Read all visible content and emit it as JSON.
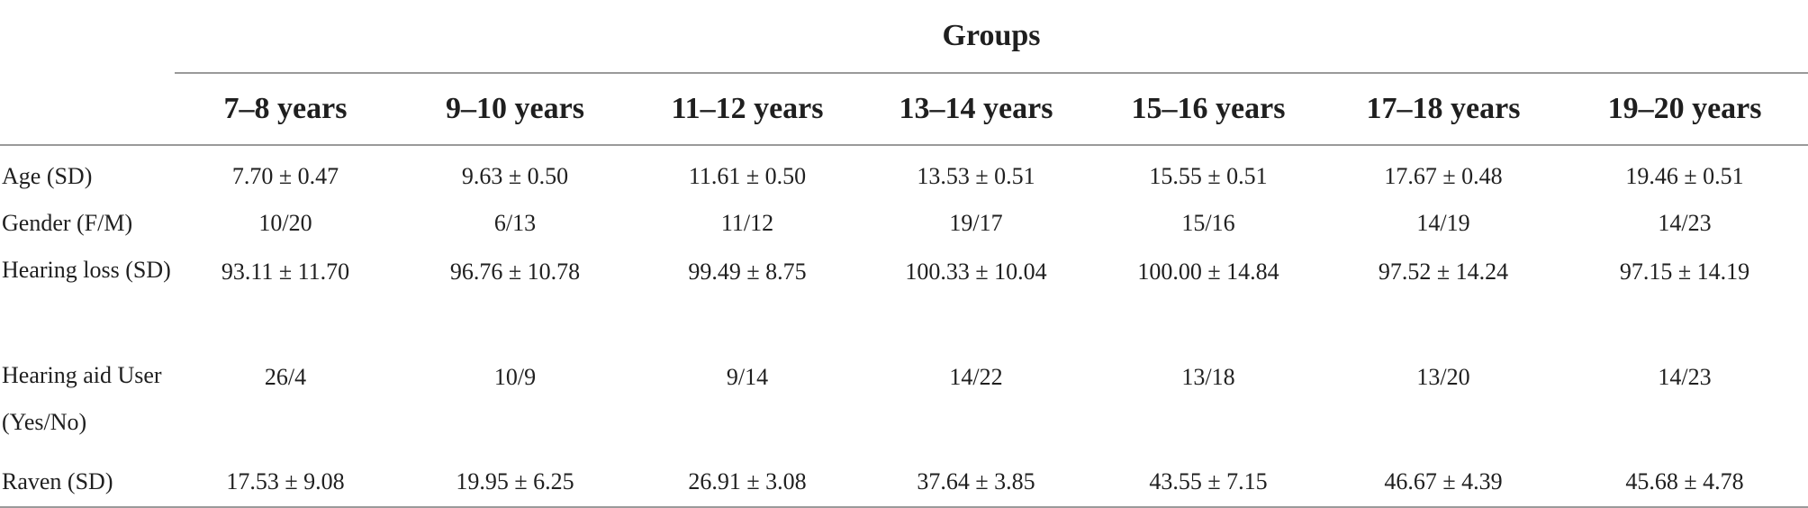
{
  "table": {
    "group_title": "Groups",
    "columns": [
      "7–8 years",
      "9–10 years",
      "11–12 years",
      "13–14 years",
      "15–16 years",
      "17–18 years",
      "19–20 years"
    ],
    "rows": [
      {
        "label": "Age (SD)",
        "values": [
          "7.70 ± 0.47",
          "9.63 ± 0.50",
          "11.61 ± 0.50",
          "13.53 ± 0.51",
          "15.55 ± 0.51",
          "17.67 ± 0.48",
          "19.46 ± 0.51"
        ]
      },
      {
        "label": "Gender (F/M)",
        "values": [
          "10/20",
          "6/13",
          "11/12",
          "19/17",
          "15/16",
          "14/19",
          "14/23"
        ]
      },
      {
        "label": "Hearing loss (SD)",
        "values": [
          "93.11 ± 11.70",
          "96.76 ± 10.78",
          "99.49 ± 8.75",
          "100.33 ± 10.04",
          "100.00 ± 14.84",
          "97.52 ± 14.24",
          "97.15 ± 14.19"
        ]
      },
      {
        "label": "Hearing aid User (Yes/No)",
        "values": [
          "26/4",
          "10/9",
          "9/14",
          "14/22",
          "13/18",
          "13/20",
          "14/23"
        ]
      },
      {
        "label": "Raven (SD)",
        "values": [
          "17.53 ± 9.08",
          "19.95 ± 6.25",
          "26.91 ± 3.08",
          "37.64 ± 3.85",
          "43.55 ± 7.15",
          "46.67 ± 4.39",
          "45.68 ± 4.78"
        ]
      }
    ]
  }
}
